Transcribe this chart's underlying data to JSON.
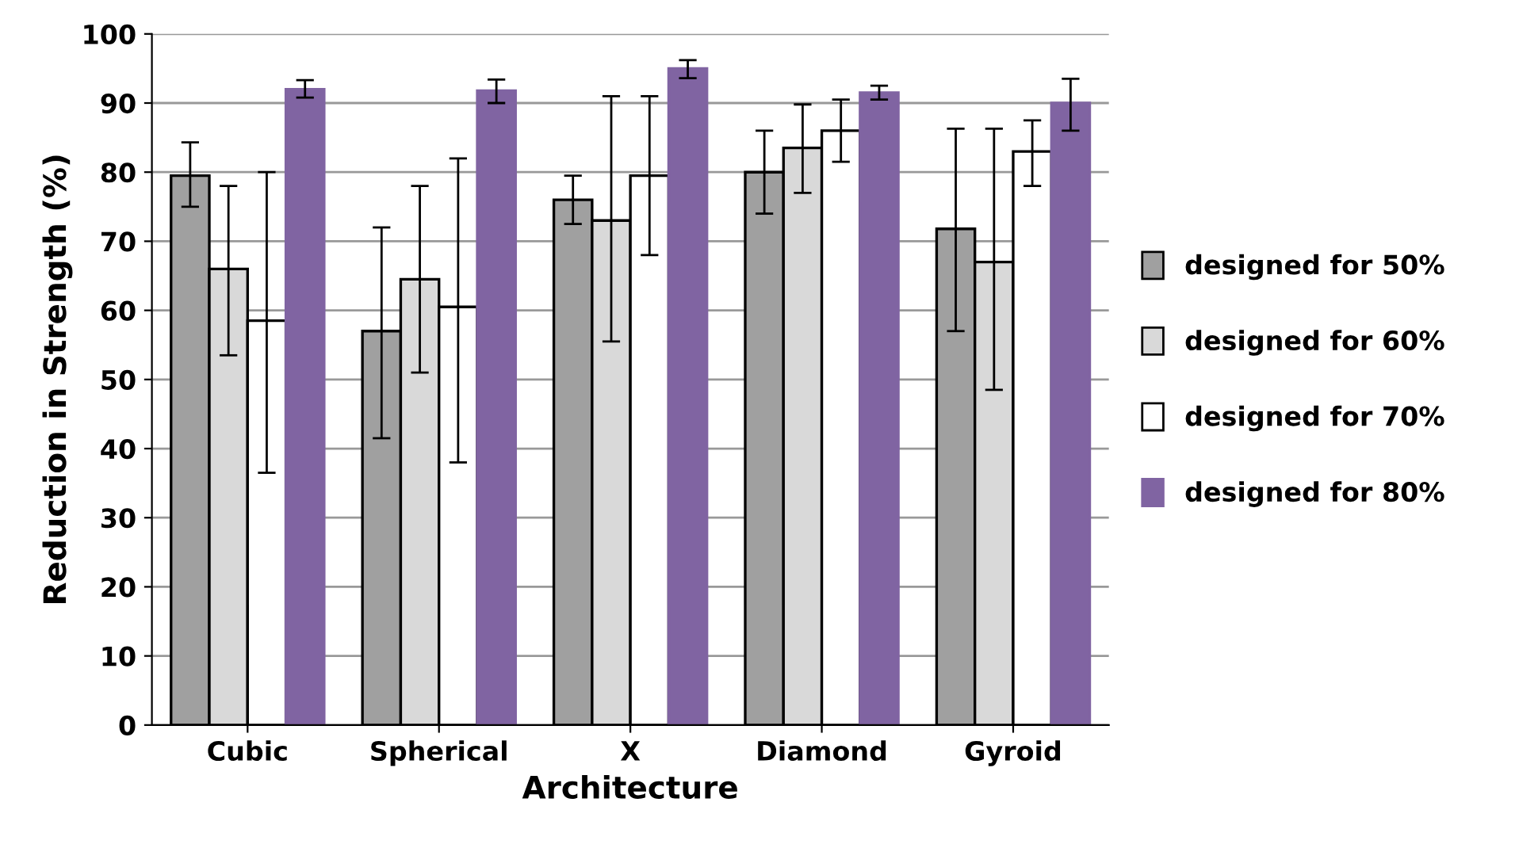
{
  "chart_data": {
    "type": "bar",
    "xlabel": "Architecture",
    "ylabel": "Reduction in Strength (%)",
    "categories": [
      "Cubic",
      "Spherical",
      "X",
      "Diamond",
      "Gyroid"
    ],
    "series": [
      {
        "name": "designed for 50%",
        "color": "#a0a0a0",
        "values": [
          79.5,
          57,
          76,
          80,
          71.8
        ],
        "errors": [
          [
            75,
            84.3
          ],
          [
            41.5,
            72
          ],
          [
            72.5,
            79.5
          ],
          [
            74,
            86
          ],
          [
            57,
            86.3
          ]
        ]
      },
      {
        "name": "designed for 60%",
        "color": "#d9d9d9",
        "values": [
          66,
          64.5,
          73,
          83.5,
          67
        ],
        "errors": [
          [
            53.5,
            78
          ],
          [
            51,
            78
          ],
          [
            55.5,
            91
          ],
          [
            77,
            89.8
          ],
          [
            48.5,
            86.3
          ]
        ]
      },
      {
        "name": "designed for 70%",
        "color": "#ffffff",
        "values": [
          58.5,
          60.5,
          79.5,
          86,
          83
        ],
        "errors": [
          [
            36.5,
            80
          ],
          [
            38,
            82
          ],
          [
            68,
            91
          ],
          [
            81.5,
            90.5
          ],
          [
            78,
            87.5
          ]
        ]
      },
      {
        "name": "designed for 80%",
        "color": "#8064a2",
        "values": [
          92,
          91.8,
          95,
          91.5,
          90
        ],
        "errors": [
          [
            90.8,
            93.3
          ],
          [
            90,
            93.4
          ],
          [
            93.6,
            96.2
          ],
          [
            90.5,
            92.5
          ],
          [
            86,
            93.5
          ]
        ]
      }
    ],
    "ylim": [
      0,
      100
    ],
    "yticks": [
      0,
      10,
      20,
      30,
      40,
      50,
      60,
      70,
      80,
      90,
      100
    ],
    "grid": "y",
    "legend": "right"
  }
}
